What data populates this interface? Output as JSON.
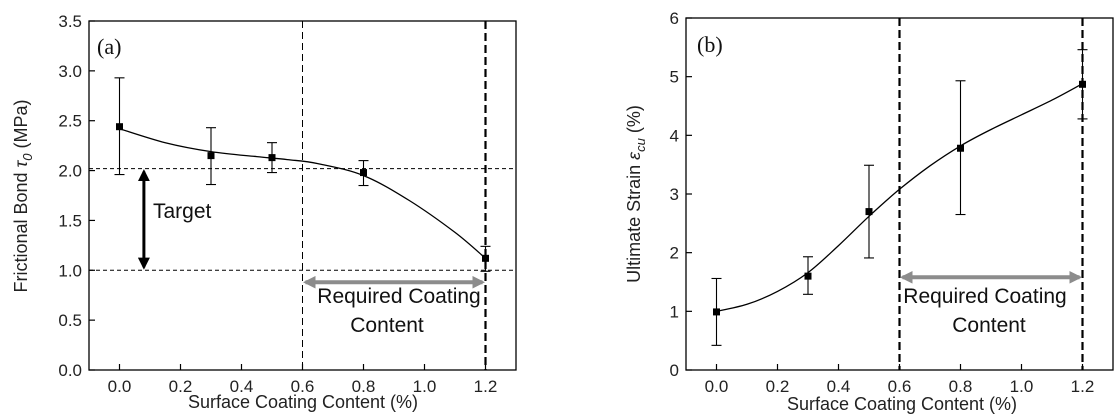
{
  "chart_data": [
    {
      "type": "scatter",
      "panel_label": "(a)",
      "xlabel": "Surface Coating Content (%)",
      "ylabel_main": "Frictional Bond ",
      "ylabel_symbol": "τ",
      "ylabel_sub": "0",
      "ylabel_unit": " (MPa)",
      "xlim": [
        -0.1,
        1.3
      ],
      "ylim": [
        0.0,
        3.5
      ],
      "xticks": [
        "0.0",
        "0.2",
        "0.4",
        "0.6",
        "0.8",
        "1.0",
        "1.2"
      ],
      "yticks": [
        "0.0",
        "0.5",
        "1.0",
        "1.5",
        "2.0",
        "2.5",
        "3.0",
        "3.5"
      ],
      "points": [
        {
          "x": 0.0,
          "y": 2.44,
          "err_low": 1.96,
          "err_high": 2.93
        },
        {
          "x": 0.3,
          "y": 2.15,
          "err_low": 1.86,
          "err_high": 2.43
        },
        {
          "x": 0.5,
          "y": 2.13,
          "err_low": 1.98,
          "err_high": 2.28
        },
        {
          "x": 0.8,
          "y": 1.98,
          "err_low": 1.85,
          "err_high": 2.1
        },
        {
          "x": 1.2,
          "y": 1.12,
          "err_low": 0.99,
          "err_high": 1.24
        }
      ],
      "fit_curve": [
        [
          0.0,
          2.42
        ],
        [
          0.15,
          2.28
        ],
        [
          0.3,
          2.19
        ],
        [
          0.45,
          2.14
        ],
        [
          0.55,
          2.11
        ],
        [
          0.65,
          2.07
        ],
        [
          0.8,
          1.95
        ],
        [
          0.95,
          1.7
        ],
        [
          1.1,
          1.38
        ],
        [
          1.2,
          1.12
        ]
      ],
      "reference_lines": {
        "horizontal": [
          2.02,
          1.0
        ],
        "vertical_thin": 0.6,
        "vertical_bold": 1.2
      },
      "arrows": {
        "target_label": "Target",
        "target_x": 0.08,
        "target_y_range": [
          1.0,
          2.02
        ],
        "range_x": [
          0.6,
          1.2
        ],
        "range_y": 0.88
      },
      "annotation": [
        "Required Coating",
        "Content"
      ]
    },
    {
      "type": "scatter",
      "panel_label": "(b)",
      "xlabel": "Surface Coating Content (%)",
      "ylabel_main": "Ultimate Strain ",
      "ylabel_symbol": "ε",
      "ylabel_sub": "cu",
      "ylabel_unit": " (%)",
      "xlim": [
        -0.1,
        1.3
      ],
      "ylim": [
        0,
        6
      ],
      "xticks": [
        "0.0",
        "0.2",
        "0.4",
        "0.6",
        "0.8",
        "1.0",
        "1.2"
      ],
      "yticks": [
        "0",
        "1",
        "2",
        "3",
        "4",
        "5",
        "6"
      ],
      "points": [
        {
          "x": 0.0,
          "y": 0.99,
          "err_low": 0.42,
          "err_high": 1.56
        },
        {
          "x": 0.3,
          "y": 1.6,
          "err_low": 1.29,
          "err_high": 1.93
        },
        {
          "x": 0.5,
          "y": 2.7,
          "err_low": 1.91,
          "err_high": 3.49
        },
        {
          "x": 0.8,
          "y": 3.78,
          "err_low": 2.65,
          "err_high": 4.93
        },
        {
          "x": 1.2,
          "y": 4.87,
          "err_low": 4.28,
          "err_high": 5.46
        }
      ],
      "fit_curve": [
        [
          0.0,
          1.0
        ],
        [
          0.1,
          1.12
        ],
        [
          0.2,
          1.34
        ],
        [
          0.3,
          1.66
        ],
        [
          0.4,
          2.12
        ],
        [
          0.5,
          2.62
        ],
        [
          0.6,
          3.08
        ],
        [
          0.7,
          3.48
        ],
        [
          0.8,
          3.82
        ],
        [
          0.9,
          4.1
        ],
        [
          1.0,
          4.35
        ],
        [
          1.1,
          4.6
        ],
        [
          1.2,
          4.88
        ]
      ],
      "reference_lines": {
        "horizontal": [],
        "vertical_thin": null,
        "vertical_bold": [
          0.6,
          1.2
        ]
      },
      "arrows": {
        "range_x": [
          0.6,
          1.2
        ],
        "range_y": 1.58
      },
      "annotation": [
        "Required Coating",
        "Content"
      ]
    }
  ]
}
